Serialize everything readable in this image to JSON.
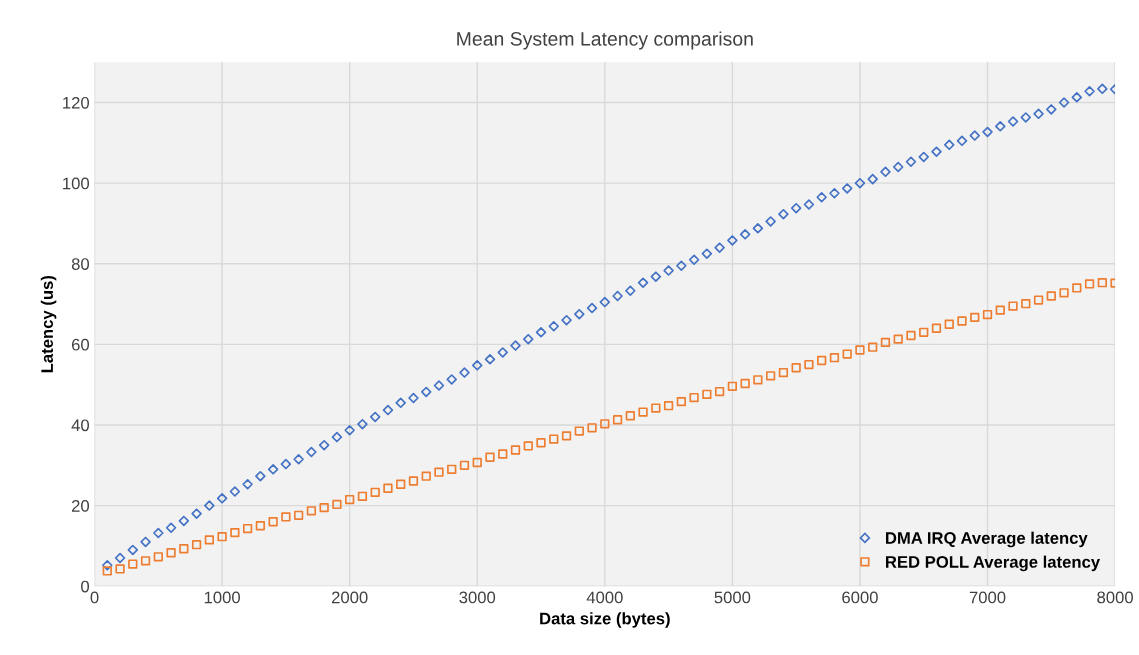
{
  "chart_data": {
    "type": "scatter",
    "title": "Mean System Latency comparison",
    "xlabel": "Data size (bytes)",
    "ylabel": "Latency (us)",
    "x": [
      100,
      200,
      300,
      400,
      500,
      600,
      700,
      800,
      900,
      1000,
      1100,
      1200,
      1300,
      1400,
      1500,
      1600,
      1700,
      1800,
      1900,
      2000,
      2100,
      2200,
      2300,
      2400,
      2500,
      2600,
      2700,
      2800,
      2900,
      3000,
      3100,
      3200,
      3300,
      3400,
      3500,
      3600,
      3700,
      3800,
      3900,
      4000,
      4100,
      4200,
      4300,
      4400,
      4500,
      4600,
      4700,
      4800,
      4900,
      5000,
      5100,
      5200,
      5300,
      5400,
      5500,
      5600,
      5700,
      5800,
      5900,
      6000,
      6100,
      6200,
      6300,
      6400,
      6500,
      6600,
      6700,
      6800,
      6900,
      7000,
      7100,
      7200,
      7300,
      7400,
      7500,
      7600,
      7700,
      7800,
      7900,
      8000
    ],
    "series": [
      {
        "name": "DMA IRQ Average latency",
        "color": "#4472c4",
        "marker": "diamond",
        "values": [
          5.2,
          7,
          9,
          11,
          13.2,
          14.5,
          16.2,
          18,
          20,
          21.8,
          23.5,
          25.3,
          27.3,
          29,
          30.3,
          31.5,
          33.3,
          35,
          37,
          38.7,
          40.2,
          42,
          43.7,
          45.5,
          46.7,
          48.2,
          49.8,
          51.3,
          53,
          54.8,
          56.3,
          58,
          59.7,
          61.3,
          63,
          64.5,
          66,
          67.5,
          69,
          70.5,
          72,
          73.3,
          75.3,
          76.8,
          78.3,
          79.5,
          81,
          82.5,
          84,
          85.8,
          87.3,
          88.8,
          90.5,
          92.3,
          93.8,
          94.7,
          96.5,
          97.5,
          98.7,
          100,
          101,
          102.8,
          104,
          105.3,
          106.5,
          107.8,
          109.5,
          110.5,
          111.8,
          112.7,
          114.1,
          115.3,
          116.3,
          117.2,
          118.3,
          120,
          121.3,
          122.8,
          123.4,
          123.3
        ]
      },
      {
        "name": "RED POLL Average latency",
        "color": "#ed7d31",
        "marker": "square",
        "values": [
          3.8,
          4.3,
          5.5,
          6.3,
          7.3,
          8.3,
          9.3,
          10.3,
          11.5,
          12.3,
          13.3,
          14.3,
          15,
          16,
          17.2,
          17.6,
          18.7,
          19.5,
          20.3,
          21.5,
          22.3,
          23.3,
          24.3,
          25.3,
          26.1,
          27.3,
          28.3,
          29,
          30,
          30.7,
          32,
          32.8,
          33.8,
          34.8,
          35.6,
          36.5,
          37.3,
          38.5,
          39.3,
          40.3,
          41.3,
          42.3,
          43.2,
          44.2,
          44.8,
          45.8,
          46.8,
          47.6,
          48.3,
          49.6,
          50.3,
          51.2,
          52.2,
          53,
          54.2,
          55,
          56,
          56.7,
          57.6,
          58.6,
          59.3,
          60.5,
          61.3,
          62.2,
          63,
          64,
          65,
          65.8,
          66.7,
          67.4,
          68.5,
          69.5,
          70.1,
          71,
          72,
          72.8,
          74,
          75,
          75.3,
          75.2
        ]
      }
    ],
    "xlim": [
      0,
      8000
    ],
    "xticks": [
      0,
      1000,
      2000,
      3000,
      4000,
      5000,
      6000,
      7000,
      8000
    ],
    "ylim": [
      0,
      130
    ],
    "yticks": [
      0,
      20,
      40,
      60,
      80,
      100,
      120
    ],
    "grid": true,
    "legend": "bottom right"
  }
}
